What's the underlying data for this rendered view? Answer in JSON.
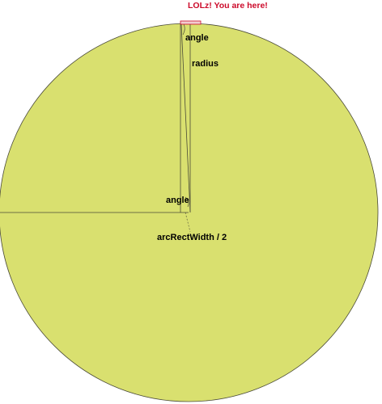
{
  "colors": {
    "circle_fill": "#d9e06f",
    "stroke": "#4a4a38",
    "highlight": "#cc0a2a",
    "highlight_fill": "#f2cdd0"
  },
  "labels": {
    "you_are_here": "LOLz! You are here!",
    "angle_top": "angle",
    "radius": "radius",
    "angle_center": "angle",
    "arc_rect_width_half": "arcRectWidth / 2"
  }
}
